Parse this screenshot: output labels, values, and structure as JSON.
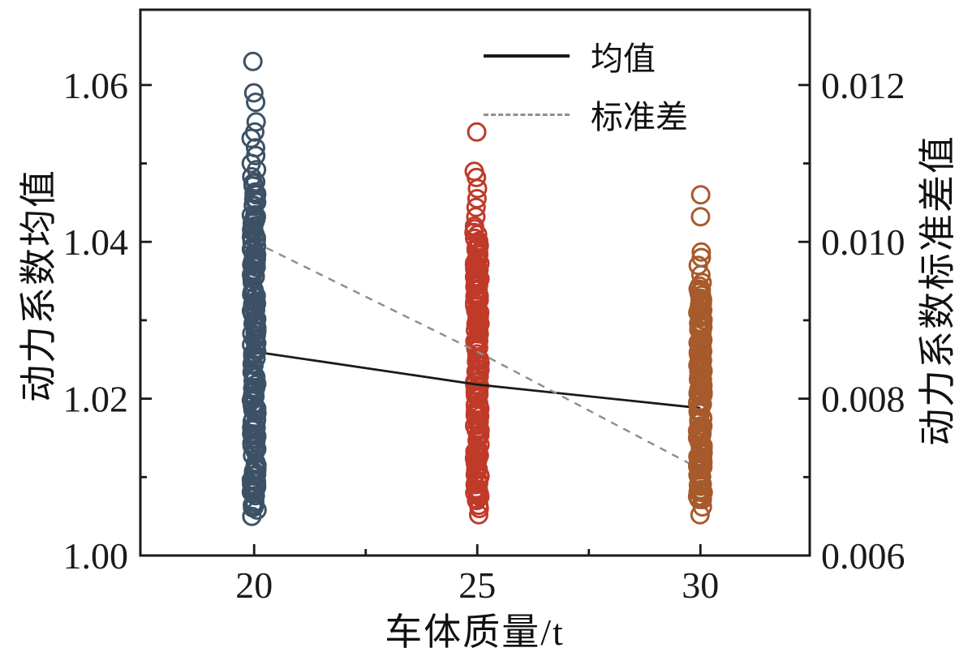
{
  "chart_data": {
    "type": "scatter",
    "title": "",
    "xlabel": "车体质量/t",
    "ylabel_left": "动力系数均值",
    "ylabel_right": "动力系数标准差值",
    "axes": {
      "x": {
        "label": "车体质量/t",
        "ticks": [
          20,
          25,
          30
        ],
        "tick_labels": [
          "20",
          "25",
          "30"
        ],
        "minor": [
          22.5,
          27.5
        ],
        "range": [
          17.45,
          32.45
        ],
        "grid": false
      },
      "left": {
        "label": "动力系数均值",
        "ticks": [
          1.0,
          1.02,
          1.04,
          1.06
        ],
        "tick_labels": [
          "1.00",
          "1.02",
          "1.04",
          "1.06"
        ],
        "minor": [
          1.01,
          1.03,
          1.05
        ],
        "range": [
          1.0,
          1.0696
        ]
      },
      "right": {
        "label": "动力系数标准差值",
        "ticks": [
          0.006,
          0.008,
          0.01,
          0.012
        ],
        "tick_labels": [
          "0.006",
          "0.008",
          "0.010",
          "0.012"
        ],
        "minor": [
          0.007,
          0.009,
          0.011
        ],
        "range": [
          0.006,
          0.01296
        ]
      }
    },
    "legend": {
      "position": "top-center",
      "entries": [
        {
          "label": "均值",
          "style": "solid",
          "color": "#1a1a1a"
        },
        {
          "label": "标准差",
          "style": "dashed",
          "color": "#8f8f8f"
        }
      ]
    },
    "series": [
      {
        "name": "均值",
        "type": "line",
        "style": "solid",
        "color": "#1a1a1a",
        "axis": "left",
        "x": [
          20,
          25,
          30
        ],
        "values": [
          1.026,
          1.0218,
          1.0188
        ]
      },
      {
        "name": "标准差",
        "type": "line",
        "style": "dashed",
        "color": "#8f8f8f",
        "axis": "right",
        "x": [
          20,
          25,
          30
        ],
        "values": [
          0.01,
          0.0086,
          0.0071
        ]
      }
    ],
    "clusters": [
      {
        "x": 20,
        "color": "#3d5166",
        "outliers": [
          1.063
        ],
        "sparse_top": [
          1.059,
          1.0578,
          1.0553,
          1.054,
          1.0532,
          1.052,
          1.051,
          1.05,
          1.0492,
          1.0483,
          1.0475
        ],
        "sparse_bottom": [
          1.005,
          1.0058,
          1.0068,
          1.008
        ],
        "dense_range": [
          1.006,
          1.047
        ],
        "dense_count": 175
      },
      {
        "x": 25,
        "color": "#c03a2a",
        "outliers": [
          1.054
        ],
        "sparse_top": [
          1.049,
          1.0482,
          1.0468,
          1.0455,
          1.0444,
          1.0432,
          1.042,
          1.0412
        ],
        "sparse_bottom": [
          1.0052,
          1.006,
          1.0072
        ],
        "dense_range": [
          1.007,
          1.041
        ],
        "dense_count": 165
      },
      {
        "x": 30,
        "color": "#a75a2b",
        "outliers": [
          1.046,
          1.0432
        ],
        "sparse_top": [
          1.0387,
          1.038,
          1.037,
          1.0358,
          1.0348,
          1.034
        ],
        "sparse_bottom": [
          1.0052,
          1.0062,
          1.0075
        ],
        "dense_range": [
          1.007,
          1.034
        ],
        "dense_count": 160
      }
    ]
  }
}
